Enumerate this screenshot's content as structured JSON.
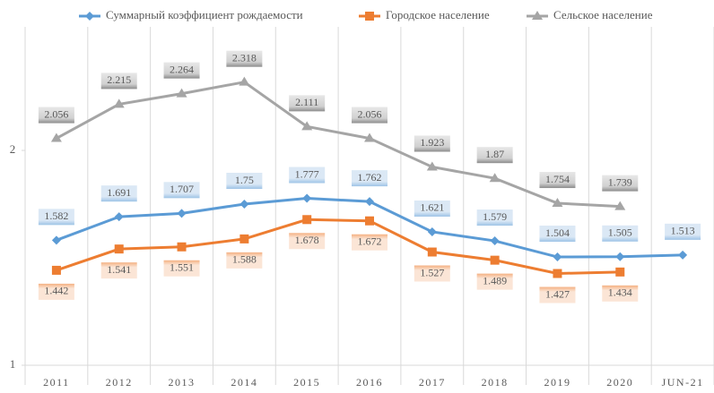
{
  "chart_data": {
    "type": "line",
    "categories": [
      "2011",
      "2012",
      "2013",
      "2014",
      "2015",
      "2016",
      "2017",
      "2018",
      "2019",
      "2020",
      "JUN-21"
    ],
    "series": [
      {
        "name": "Суммарный коэффициент рождаемости",
        "color": "#5b9bd5",
        "marker": "diamond",
        "values": [
          1.582,
          1.691,
          1.707,
          1.75,
          1.777,
          1.762,
          1.621,
          1.579,
          1.504,
          1.505,
          1.513
        ]
      },
      {
        "name": "Городское население",
        "color": "#ed7d31",
        "marker": "square",
        "values": [
          1.442,
          1.541,
          1.551,
          1.588,
          1.678,
          1.672,
          1.527,
          1.489,
          1.427,
          1.434,
          null
        ]
      },
      {
        "name": "Сельское население",
        "color": "#a5a5a5",
        "marker": "triangle",
        "values": [
          2.056,
          2.215,
          2.264,
          2.318,
          2.111,
          2.056,
          1.923,
          1.87,
          1.754,
          1.739,
          null
        ]
      }
    ],
    "ylim": [
      1,
      2.5
    ],
    "yticks": [
      1,
      2
    ],
    "legend": "top"
  }
}
